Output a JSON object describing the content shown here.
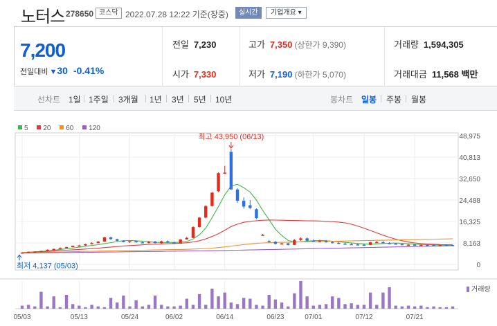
{
  "header": {
    "stock_name": "노터스",
    "stock_code": "278650",
    "market": "코스닥",
    "date": "2022.07.28 12:22 기준(장중)",
    "realtime_btn": "실시간",
    "company_btn": "기업개요 ▾"
  },
  "quote": {
    "price": "7,200",
    "change_label": "전일대비",
    "change_arrow": "▼",
    "change_amount": "30",
    "change_percent": "-0.41%",
    "prev_close_label": "전일",
    "prev_close": "7,230",
    "high_label": "고가",
    "high": "7,350",
    "upper_limit_label": "상한가",
    "upper_limit": "9,390",
    "volume_label": "거래량",
    "volume": "1,594,305",
    "open_label": "시가",
    "open": "7,330",
    "low_label": "저가",
    "low": "7,190",
    "lower_limit_label": "하한가",
    "lower_limit": "5,070",
    "trade_value_label": "거래대금",
    "trade_value": "11,568",
    "trade_value_unit": "백만"
  },
  "tabs": {
    "line_chart_label": "선차트",
    "line_periods": [
      "1일",
      "1주일",
      "3개월",
      "1년",
      "3년",
      "5년",
      "10년"
    ],
    "candle_chart_label": "봉차트",
    "candle_periods": [
      "일봉",
      "주봉",
      "월봉"
    ],
    "active_candle": "일봉"
  },
  "legend": {
    "ma": [
      {
        "label": "5",
        "color": "#3fb64a"
      },
      {
        "label": "20",
        "color": "#e33b3b"
      },
      {
        "label": "60",
        "color": "#f0912d"
      },
      {
        "label": "120",
        "color": "#9a5cc6"
      }
    ],
    "volume_label": "거래량"
  },
  "annotations": {
    "max_text": "최고 43,950 (06/13)",
    "min_text": "최저 4,137 (05/03)"
  },
  "chart_data": {
    "type": "candlestick",
    "y_ticks": [
      "48,975",
      "40,813",
      "32,650",
      "24,488",
      "16,325",
      "8,163",
      "0"
    ],
    "y_range": [
      0,
      48975
    ],
    "x_ticks": [
      "05/03",
      "05/13",
      "05/24",
      "06/02",
      "06/14",
      "06/23",
      "07/01",
      "07/12",
      "07/21"
    ],
    "grid": true,
    "colors": {
      "up": "#e52a1c",
      "down": "#2b6fe0",
      "volume": "#9a77c4"
    },
    "max_point": {
      "value": 43950,
      "date": "06/13"
    },
    "min_point": {
      "value": 4137,
      "date": "05/03"
    },
    "candles": [
      {
        "o": 4150,
        "h": 4600,
        "l": 4137,
        "c": 4500
      },
      {
        "o": 4500,
        "h": 4900,
        "l": 4450,
        "c": 4800
      },
      {
        "o": 4800,
        "h": 5000,
        "l": 4700,
        "c": 4900
      },
      {
        "o": 4900,
        "h": 5200,
        "l": 4850,
        "c": 5100
      },
      {
        "o": 5100,
        "h": 5700,
        "l": 5050,
        "c": 5600
      },
      {
        "o": 5600,
        "h": 6000,
        "l": 5500,
        "c": 5900
      },
      {
        "o": 5900,
        "h": 6500,
        "l": 5850,
        "c": 6300
      },
      {
        "o": 6300,
        "h": 6700,
        "l": 6200,
        "c": 6600
      },
      {
        "o": 6600,
        "h": 7200,
        "l": 6550,
        "c": 7100
      },
      {
        "o": 7100,
        "h": 7400,
        "l": 6900,
        "c": 7200
      },
      {
        "o": 7200,
        "h": 7900,
        "l": 7100,
        "c": 7700
      },
      {
        "o": 7700,
        "h": 8400,
        "l": 7600,
        "c": 8100
      },
      {
        "o": 8100,
        "h": 8900,
        "l": 8000,
        "c": 8700
      },
      {
        "o": 8700,
        "h": 10500,
        "l": 8600,
        "c": 10300
      },
      {
        "o": 10300,
        "h": 10500,
        "l": 9400,
        "c": 9600
      },
      {
        "o": 9600,
        "h": 9800,
        "l": 8800,
        "c": 9000
      },
      {
        "o": 9000,
        "h": 9200,
        "l": 8400,
        "c": 8500
      },
      {
        "o": 8500,
        "h": 8900,
        "l": 8200,
        "c": 8800
      },
      {
        "o": 8800,
        "h": 9100,
        "l": 8300,
        "c": 8400
      },
      {
        "o": 8400,
        "h": 8700,
        "l": 8100,
        "c": 8200
      },
      {
        "o": 8200,
        "h": 8900,
        "l": 7900,
        "c": 8700
      },
      {
        "o": 8700,
        "h": 8900,
        "l": 8000,
        "c": 8100
      },
      {
        "o": 8100,
        "h": 9000,
        "l": 7900,
        "c": 8800
      },
      {
        "o": 8800,
        "h": 9100,
        "l": 8200,
        "c": 8400
      },
      {
        "o": 8400,
        "h": 8600,
        "l": 7800,
        "c": 7900
      },
      {
        "o": 7900,
        "h": 9600,
        "l": 7800,
        "c": 9500
      },
      {
        "o": 9500,
        "h": 10500,
        "l": 9400,
        "c": 10100
      },
      {
        "o": 10100,
        "h": 14500,
        "l": 10000,
        "c": 14200
      },
      {
        "o": 14200,
        "h": 18000,
        "l": 14000,
        "c": 17800
      },
      {
        "o": 17800,
        "h": 22500,
        "l": 17500,
        "c": 22200
      },
      {
        "o": 22200,
        "h": 27500,
        "l": 22000,
        "c": 27300
      },
      {
        "o": 27800,
        "h": 35000,
        "l": 27500,
        "c": 34700
      },
      {
        "o": 34700,
        "h": 37500,
        "l": 34600,
        "c": 34900
      },
      {
        "o": 42800,
        "h": 43950,
        "l": 28800,
        "c": 28500
      },
      {
        "o": 28500,
        "h": 29000,
        "l": 23400,
        "c": 24200
      },
      {
        "o": 24200,
        "h": 25500,
        "l": 21200,
        "c": 22000
      },
      {
        "o": 22500,
        "h": 24500,
        "l": 21000,
        "c": 21500
      },
      {
        "o": 21000,
        "h": 21300,
        "l": 17200,
        "c": 17600
      },
      {
        "o": 11200,
        "h": 11600,
        "l": 10800,
        "c": 11300
      },
      {
        "o": 8900,
        "h": 9300,
        "l": 8300,
        "c": 8600
      },
      {
        "o": 8600,
        "h": 8900,
        "l": 7600,
        "c": 7800
      },
      {
        "o": 7800,
        "h": 8200,
        "l": 7500,
        "c": 8000
      },
      {
        "o": 8000,
        "h": 8200,
        "l": 7200,
        "c": 7400
      },
      {
        "o": 7400,
        "h": 9600,
        "l": 7300,
        "c": 9300
      },
      {
        "o": 9300,
        "h": 10300,
        "l": 8900,
        "c": 9900
      },
      {
        "o": 9900,
        "h": 10300,
        "l": 8800,
        "c": 9000
      },
      {
        "o": 9000,
        "h": 9500,
        "l": 8500,
        "c": 8700
      },
      {
        "o": 8700,
        "h": 9400,
        "l": 8400,
        "c": 8800
      },
      {
        "o": 8800,
        "h": 9300,
        "l": 8300,
        "c": 8500
      },
      {
        "o": 8500,
        "h": 8800,
        "l": 8000,
        "c": 8200
      },
      {
        "o": 8200,
        "h": 8500,
        "l": 7700,
        "c": 7900
      },
      {
        "o": 7900,
        "h": 8300,
        "l": 7600,
        "c": 7700
      },
      {
        "o": 7700,
        "h": 8100,
        "l": 7400,
        "c": 7600
      },
      {
        "o": 7600,
        "h": 8000,
        "l": 7300,
        "c": 7500
      },
      {
        "o": 7500,
        "h": 7900,
        "l": 7200,
        "c": 7400
      },
      {
        "o": 7400,
        "h": 8600,
        "l": 7300,
        "c": 8400
      },
      {
        "o": 8400,
        "h": 9000,
        "l": 8200,
        "c": 8500
      },
      {
        "o": 8500,
        "h": 8800,
        "l": 7900,
        "c": 8100
      },
      {
        "o": 8100,
        "h": 8400,
        "l": 7700,
        "c": 7900
      },
      {
        "o": 7900,
        "h": 8200,
        "l": 7500,
        "c": 7700
      },
      {
        "o": 7700,
        "h": 8000,
        "l": 7300,
        "c": 7400
      },
      {
        "o": 7400,
        "h": 7700,
        "l": 7200,
        "c": 7500
      },
      {
        "o": 7500,
        "h": 7700,
        "l": 7200,
        "c": 7300
      },
      {
        "o": 7300,
        "h": 7600,
        "l": 7100,
        "c": 7400
      },
      {
        "o": 7400,
        "h": 7600,
        "l": 7100,
        "c": 7300
      },
      {
        "o": 7300,
        "h": 7500,
        "l": 7100,
        "c": 7200
      },
      {
        "o": 7200,
        "h": 7500,
        "l": 7050,
        "c": 7350
      },
      {
        "o": 7350,
        "h": 7500,
        "l": 7100,
        "c": 7230
      },
      {
        "o": 7330,
        "h": 7350,
        "l": 7190,
        "c": 7200
      }
    ],
    "ma_series": [
      {
        "label": "5",
        "color": "#3fb64a",
        "values": [
          4500,
          4650,
          4800,
          4950,
          5100,
          5400,
          5700,
          5950,
          6250,
          6550,
          6900,
          7200,
          7500,
          7900,
          8300,
          8700,
          9000,
          9100,
          9000,
          8800,
          8600,
          8400,
          8350,
          8350,
          8350,
          8450,
          8700,
          9700,
          11300,
          13800,
          17800,
          22000,
          26500,
          29800,
          30500,
          29200,
          27500,
          24500,
          20500,
          17000,
          13400,
          11000,
          9100,
          8500,
          8600,
          8800,
          9000,
          9100,
          9000,
          8800,
          8600,
          8400,
          8150,
          7950,
          7800,
          7700,
          7800,
          7950,
          8050,
          8100,
          8000,
          7850,
          7700,
          7600,
          7500,
          7400,
          7350,
          7320,
          7310
        ]
      },
      {
        "label": "20",
        "color": "#e33b3b",
        "values": [
          4500,
          4600,
          4700,
          4800,
          4950,
          5100,
          5250,
          5400,
          5550,
          5700,
          5850,
          6000,
          6200,
          6400,
          6600,
          6800,
          7000,
          7150,
          7300,
          7450,
          7600,
          7700,
          7800,
          7900,
          7950,
          8050,
          8250,
          8550,
          9000,
          9700,
          10600,
          11700,
          13000,
          14400,
          15300,
          16000,
          16400,
          16600,
          16800,
          16900,
          16850,
          16800,
          16750,
          16700,
          16650,
          16600,
          16550,
          16500,
          16400,
          16300,
          16100,
          15800,
          15300,
          14600,
          13800,
          12900,
          12000,
          11100,
          10300,
          9600,
          9000,
          8500,
          8150,
          7900,
          7750,
          7650,
          7550,
          7500,
          7450
        ]
      },
      {
        "label": "60",
        "color": "#f0912d",
        "values": [
          4450,
          4500,
          4550,
          4600,
          4650,
          4700,
          4750,
          4800,
          4850,
          4900,
          4950,
          5000,
          5050,
          5100,
          5150,
          5200,
          5250,
          5300,
          5350,
          5400,
          5450,
          5500,
          5550,
          5600,
          5650,
          5700,
          5750,
          5850,
          5950,
          6050,
          6200,
          6400,
          6650,
          6950,
          7250,
          7550,
          7800,
          8000,
          8150,
          8250,
          8350,
          8400,
          8450,
          8500,
          8550,
          8600,
          8650,
          8700,
          8750,
          8800,
          8850,
          8900,
          8950,
          9000,
          9050,
          9100,
          9150,
          9200,
          9250,
          9300,
          9350,
          9400,
          9450,
          9500,
          9550,
          9600,
          9650,
          9700,
          9750
        ]
      },
      {
        "label": "120",
        "color": "#9a5cc6",
        "values": [
          4300,
          4330,
          4360,
          4390,
          4420,
          4450,
          4480,
          4510,
          4540,
          4570,
          4600,
          4630,
          4660,
          4690,
          4720,
          4750,
          4780,
          4810,
          4840,
          4870,
          4900,
          4930,
          4960,
          4990,
          5020,
          5050,
          5080,
          5110,
          5140,
          5170,
          5200,
          5250,
          5300,
          5350,
          5400,
          5450,
          5500,
          5550,
          5600,
          5650,
          5700,
          5750,
          5800,
          5850,
          5900,
          5950,
          6000,
          6050,
          6100,
          6150,
          6200,
          6250,
          6300,
          6350,
          6400,
          6450,
          6500,
          6550,
          6600,
          6650,
          6700,
          6750,
          6800,
          6850,
          6900,
          6950,
          7000,
          7050,
          7100
        ]
      }
    ],
    "volumes": [
      0.4,
      0.5,
      0.3,
      2.2,
      0.3,
      1.6,
      0.2,
      1.8,
      0.6,
      0.4,
      0.2,
      0.5,
      0.3,
      0.2,
      1.4,
      0.8,
      1.7,
      0.3,
      1.1,
      0.3,
      0.5,
      1.7,
      0.5,
      0.3,
      0.3,
      0.4,
      1.3,
      0.5,
      1.9,
      0.5,
      2.6,
      1.6,
      2.1,
      0.8,
      0.6,
      1.4,
      1.3,
      0.5,
      0.4,
      1.8,
      1.2,
      0.8,
      0.3,
      2.0,
      3.6,
      1.6,
      0.4,
      0.5,
      0.6,
      1.6,
      1.4,
      0.6,
      0.7,
      0.5,
      0.5,
      2.1,
      0.5,
      2.1,
      2.8,
      0.4,
      0.3,
      0.4,
      0.3,
      0.4,
      0.2,
      0.3,
      0.2,
      0.2,
      0.3
    ],
    "volume_max": 3.6
  }
}
